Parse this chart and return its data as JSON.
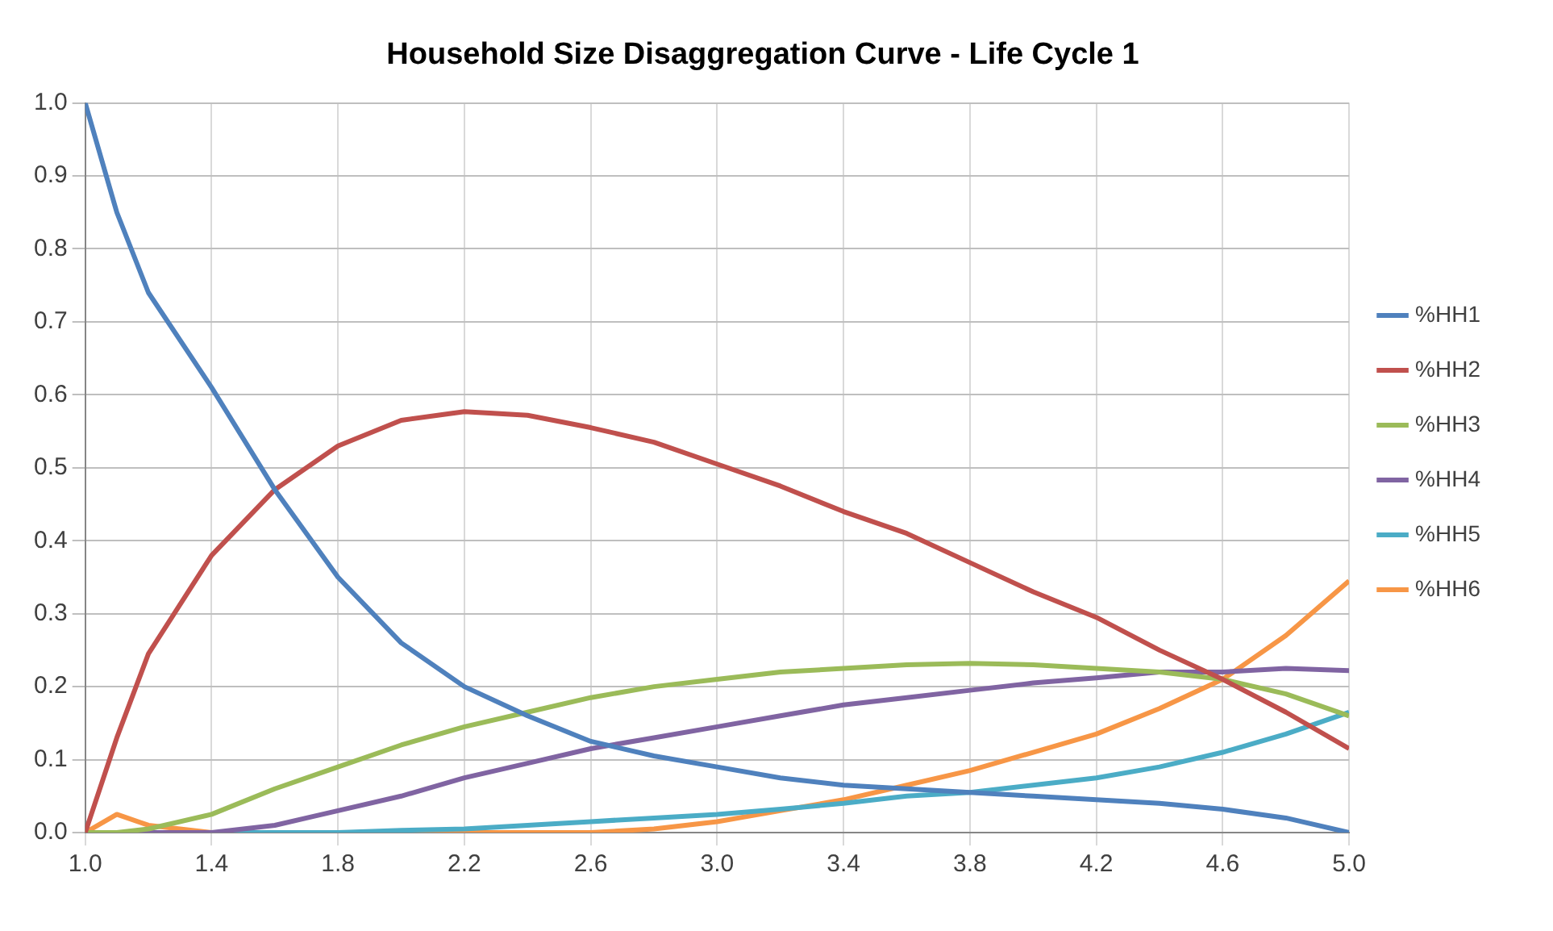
{
  "chart_data": {
    "type": "line",
    "title": "Household Size Disaggregation Curve - Life Cycle 1",
    "x": [
      1.0,
      1.1,
      1.2,
      1.4,
      1.6,
      1.8,
      2.0,
      2.2,
      2.4,
      2.6,
      2.8,
      3.0,
      3.2,
      3.4,
      3.6,
      3.8,
      4.0,
      4.2,
      4.4,
      4.6,
      4.8,
      5.0
    ],
    "series": [
      {
        "name": "%HH1",
        "color": "#4f81bd",
        "values": [
          1.0,
          0.85,
          0.74,
          0.61,
          0.47,
          0.35,
          0.26,
          0.2,
          0.16,
          0.125,
          0.105,
          0.09,
          0.075,
          0.065,
          0.06,
          0.055,
          0.05,
          0.045,
          0.04,
          0.032,
          0.02,
          0.0
        ]
      },
      {
        "name": "%HH2",
        "color": "#c0504d",
        "values": [
          0.0,
          0.13,
          0.245,
          0.38,
          0.47,
          0.53,
          0.565,
          0.577,
          0.572,
          0.555,
          0.535,
          0.505,
          0.475,
          0.44,
          0.41,
          0.37,
          0.33,
          0.295,
          0.25,
          0.21,
          0.165,
          0.115
        ]
      },
      {
        "name": "%HH3",
        "color": "#9bbb59",
        "values": [
          0.0,
          0.0,
          0.005,
          0.025,
          0.06,
          0.09,
          0.12,
          0.145,
          0.165,
          0.185,
          0.2,
          0.21,
          0.22,
          0.225,
          0.23,
          0.232,
          0.23,
          0.225,
          0.22,
          0.21,
          0.19,
          0.16
        ]
      },
      {
        "name": "%HH4",
        "color": "#8064a2",
        "values": [
          0.0,
          0.0,
          0.0,
          0.0,
          0.01,
          0.03,
          0.05,
          0.075,
          0.095,
          0.115,
          0.13,
          0.145,
          0.16,
          0.175,
          0.185,
          0.195,
          0.205,
          0.212,
          0.22,
          0.22,
          0.225,
          0.222
        ]
      },
      {
        "name": "%HH5",
        "color": "#4bacc6",
        "values": [
          null,
          null,
          0.0,
          0.0,
          0.0,
          0.0,
          0.003,
          0.005,
          0.01,
          0.015,
          0.02,
          0.025,
          0.032,
          0.04,
          0.05,
          0.055,
          0.065,
          0.075,
          0.09,
          0.11,
          0.135,
          0.165
        ]
      },
      {
        "name": "%HH6",
        "color": "#f79646",
        "values": [
          0.0,
          0.025,
          0.01,
          0.0,
          0.0,
          0.0,
          0.0,
          0.0,
          0.0,
          0.0,
          0.005,
          0.015,
          0.03,
          0.045,
          0.065,
          0.085,
          0.11,
          0.135,
          0.17,
          0.21,
          0.27,
          0.345
        ]
      }
    ],
    "xlim": [
      1.0,
      5.0
    ],
    "xticks": [
      {
        "value": 1,
        "label": "1.0"
      },
      1.4,
      1.8,
      2.2,
      2.6,
      {
        "value": 3,
        "label": "3.0"
      },
      3.4,
      3.8,
      4.2,
      4.6,
      {
        "value": 5,
        "label": "5.0"
      }
    ],
    "ylim": [
      0.0,
      1.0
    ],
    "yticks": [
      {
        "value": 0,
        "label": "0.0"
      },
      0.1,
      0.2,
      0.3,
      0.4,
      0.5,
      0.6,
      0.7,
      0.8,
      0.9,
      {
        "value": 1,
        "label": "1.0"
      }
    ],
    "grid": true,
    "legend": "right",
    "marker": "none",
    "line_style": "solid"
  }
}
